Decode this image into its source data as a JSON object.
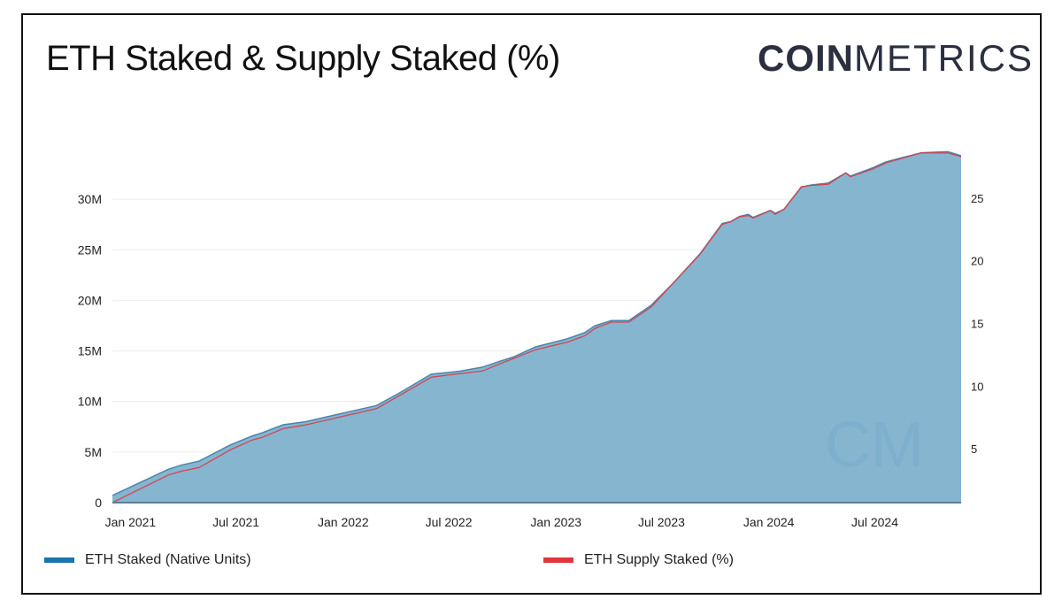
{
  "title": "ETH Staked & Supply Staked (%)",
  "logo": {
    "bold": "COIN",
    "light": "METRICS",
    "watermark": "CM"
  },
  "colors": {
    "fill": "#86b5d0",
    "staked_line": "#4a86aa",
    "pct_line": "#d24552",
    "legend_staked": "#1a74ad",
    "legend_pct": "#e0343e",
    "grid": "#ececec"
  },
  "chart_data": {
    "type": "area",
    "title": "ETH Staked & Supply Staked (%)",
    "xlim": [
      "2020-12-01",
      "2024-11-26"
    ],
    "x_ticks": [
      {
        "date": "2021-01-01",
        "label": "Jan 2021"
      },
      {
        "date": "2021-07-01",
        "label": "Jul 2021"
      },
      {
        "date": "2022-01-01",
        "label": "Jan 2022"
      },
      {
        "date": "2022-07-01",
        "label": "Jul 2022"
      },
      {
        "date": "2023-01-01",
        "label": "Jan 2023"
      },
      {
        "date": "2023-07-01",
        "label": "Jul 2023"
      },
      {
        "date": "2024-01-01",
        "label": "Jan 2024"
      },
      {
        "date": "2024-07-01",
        "label": "Jul 2024"
      }
    ],
    "y_left": {
      "ylim": [
        0,
        35.7
      ],
      "unit": "M",
      "ticks": [
        {
          "v": 0,
          "label": "0"
        },
        {
          "v": 5,
          "label": "5M"
        },
        {
          "v": 10,
          "label": "10M"
        },
        {
          "v": 15,
          "label": "15M"
        },
        {
          "v": 20,
          "label": "20M"
        },
        {
          "v": 25,
          "label": "25M"
        },
        {
          "v": 30,
          "label": "30M"
        }
      ]
    },
    "y_right": {
      "ylim": [
        0.7,
        29.5
      ],
      "ticks": [
        {
          "v": 5,
          "label": "5"
        },
        {
          "v": 10,
          "label": "10"
        },
        {
          "v": 15,
          "label": "15"
        },
        {
          "v": 20,
          "label": "20"
        },
        {
          "v": 25,
          "label": "25"
        }
      ]
    },
    "grid": true,
    "legend_position": "bottom",
    "x": [
      "2020-12-01",
      "2021-03-07",
      "2021-03-29",
      "2021-04-29",
      "2021-06-21",
      "2021-07-29",
      "2021-08-15",
      "2021-09-20",
      "2021-10-28",
      "2022-02-27",
      "2022-04-06",
      "2022-06-01",
      "2022-07-21",
      "2022-08-28",
      "2022-09-28",
      "2022-10-20",
      "2022-11-27",
      "2023-01-20",
      "2023-02-19",
      "2023-03-09",
      "2023-04-06",
      "2023-05-06",
      "2023-06-13",
      "2023-07-21",
      "2023-09-05",
      "2023-10-13",
      "2023-10-28",
      "2023-11-12",
      "2023-11-27",
      "2023-12-05",
      "2024-01-04",
      "2024-01-12",
      "2024-01-27",
      "2024-02-26",
      "2024-03-13",
      "2024-04-12",
      "2024-05-12",
      "2024-05-20",
      "2024-06-27",
      "2024-07-20",
      "2024-09-19",
      "2024-11-03",
      "2024-11-26"
    ],
    "series": [
      {
        "name": "ETH Staked (Native Units)",
        "axis": "left",
        "unit": "M",
        "values": [
          0.7,
          3.3,
          3.7,
          4.1,
          5.7,
          6.6,
          6.9,
          7.7,
          8.0,
          9.6,
          10.8,
          12.7,
          13.0,
          13.4,
          14.0,
          14.4,
          15.4,
          16.2,
          16.8,
          17.5,
          18.0,
          18.0,
          19.5,
          21.7,
          24.6,
          27.6,
          27.8,
          28.3,
          28.5,
          28.2,
          28.9,
          28.6,
          29.0,
          31.2,
          31.4,
          31.6,
          32.6,
          32.3,
          33.1,
          33.7,
          34.6,
          34.7,
          34.3
        ]
      },
      {
        "name": "ETH Supply Staked (%)",
        "axis": "right",
        "values": [
          0.7,
          2.9,
          3.2,
          3.5,
          4.9,
          5.7,
          5.9,
          6.6,
          6.9,
          8.2,
          9.2,
          10.7,
          11.0,
          11.2,
          11.8,
          12.2,
          12.9,
          13.5,
          14.0,
          14.6,
          15.1,
          15.1,
          16.3,
          18.2,
          20.5,
          22.9,
          23.1,
          23.5,
          23.6,
          23.4,
          24.0,
          23.7,
          24.1,
          25.9,
          26.0,
          26.1,
          27.0,
          26.7,
          27.3,
          27.8,
          28.6,
          28.6,
          28.3
        ]
      }
    ]
  }
}
